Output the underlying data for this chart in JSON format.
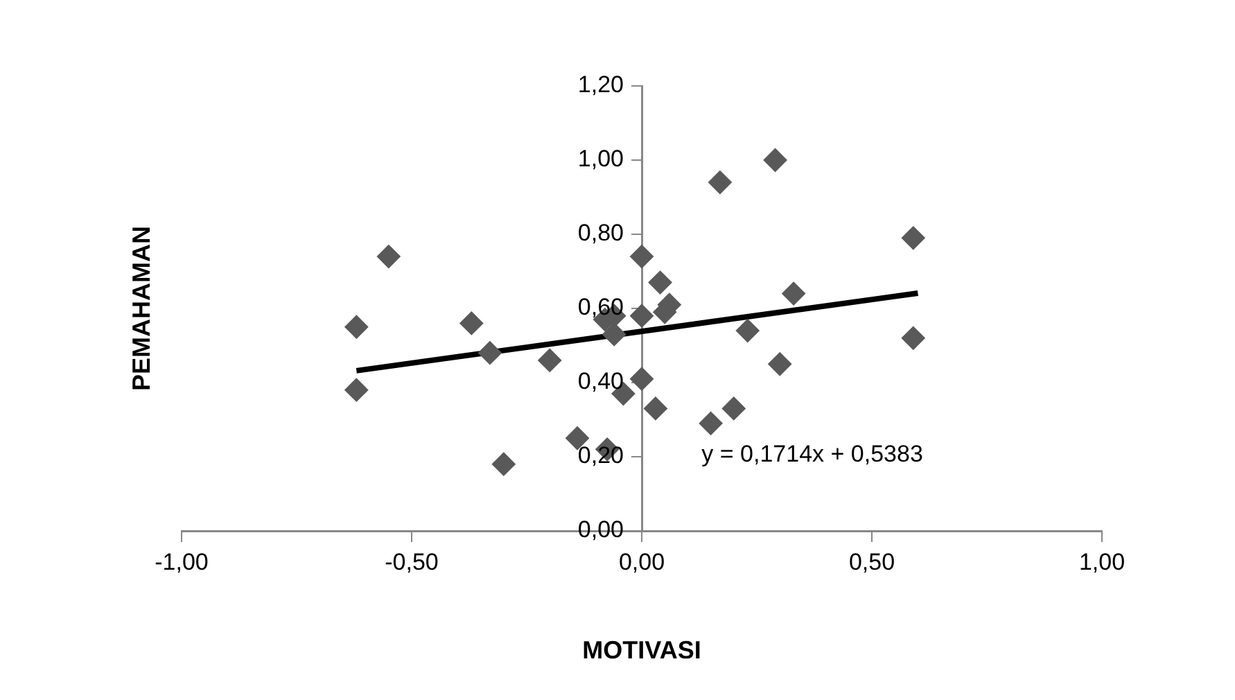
{
  "chart_data": {
    "type": "scatter",
    "xlabel": "MOTIVASI",
    "ylabel": "PEMAHAMAN",
    "marker": "diamond",
    "legend": false,
    "grid": false,
    "xlim": [
      -1,
      1
    ],
    "ylim": [
      0,
      1.2
    ],
    "xticks": [
      {
        "value": -1,
        "label": "-1,00"
      },
      {
        "value": -0.5,
        "label": "-0,50"
      },
      {
        "value": 0,
        "label": "0,00"
      },
      {
        "value": 0.5,
        "label": "0,50"
      },
      {
        "value": 1,
        "label": "1,00"
      }
    ],
    "yticks": [
      {
        "value": 0,
        "label": "0,00"
      },
      {
        "value": 0.2,
        "label": "0,20"
      },
      {
        "value": 0.4,
        "label": "0,40"
      },
      {
        "value": 0.6,
        "label": "0,60"
      },
      {
        "value": 0.8,
        "label": "0,80"
      },
      {
        "value": 1,
        "label": "1,00"
      },
      {
        "value": 1.2,
        "label": "1,20"
      }
    ],
    "series": [
      {
        "color": "#595959",
        "x": [
          -0.62,
          -0.62,
          -0.55,
          -0.37,
          -0.33,
          -0.3,
          -0.2,
          -0.14,
          -0.075,
          -0.08,
          -0.06,
          -0.06,
          -0.04,
          0,
          0,
          0,
          0.04,
          0.03,
          0.05,
          0.06,
          0.23,
          0.15,
          0.2,
          0.3,
          0.33,
          0.17,
          0.29,
          0.59,
          0.59
        ],
        "values": [
          0.55,
          0.38,
          0.74,
          0.56,
          0.48,
          0.18,
          0.46,
          0.25,
          0.22,
          0.57,
          0.58,
          0.53,
          0.37,
          0.58,
          0.74,
          0.41,
          0.67,
          0.33,
          0.59,
          0.61,
          0.54,
          0.29,
          0.33,
          0.45,
          0.64,
          0.94,
          1.0,
          0.79,
          0.52
        ]
      },
      {
        "type": "line",
        "marker": "none",
        "color": "#000000",
        "x": [
          -0.62,
          0.6
        ],
        "values": [
          0.432,
          0.641
        ]
      }
    ],
    "annotations": [
      "y = 0,1714x + 0,5383"
    ]
  }
}
